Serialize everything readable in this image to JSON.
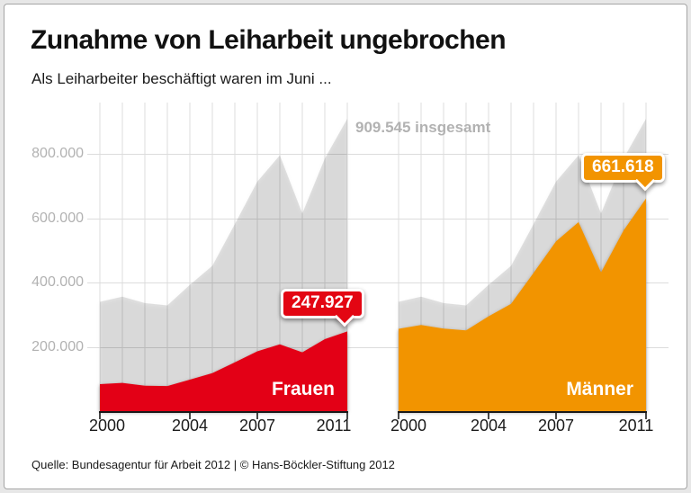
{
  "header": {
    "title": "Zunahme von Leiharbeit ungebrochen",
    "subtitle": "Als Leiharbeiter beschäftigt waren im Juni ..."
  },
  "footer": {
    "source": "Quelle: Bundesagentur für Arbeit 2012 | © Hans-Böckler-Stiftung 2012"
  },
  "colors": {
    "frauen": "#e30613",
    "maenner": "#f29400",
    "total_area": "rgba(0,0,0,0.115)",
    "grid": "#dcdcdc",
    "axis": "#1a1a1a",
    "muted_text": "#b2b2b2"
  },
  "chart_data": {
    "type": "area",
    "years": [
      2000,
      2001,
      2002,
      2003,
      2004,
      2005,
      2006,
      2007,
      2008,
      2009,
      2010,
      2011
    ],
    "ylim": [
      0,
      960000
    ],
    "grid": true,
    "y_ticks": [
      {
        "value": 200000,
        "label": "200.000"
      },
      {
        "value": 400000,
        "label": "400.000"
      },
      {
        "value": 600000,
        "label": "600.000"
      },
      {
        "value": 800000,
        "label": "800.000"
      }
    ],
    "x_ticks": {
      "years": [
        2000,
        2004,
        2007,
        2011
      ],
      "labels": [
        "2000",
        "2004",
        "2007",
        "2011"
      ]
    },
    "total_series": {
      "name": "insgesamt",
      "values": [
        340000,
        356000,
        336000,
        329000,
        393000,
        452000,
        582000,
        714000,
        796000,
        615000,
        786000,
        909545
      ],
      "final_value": 909545,
      "final_label": "909.545 insgesamt"
    },
    "panels": [
      {
        "key": "frauen",
        "label": "Frauen",
        "callout": "247.927",
        "final_value": 247927,
        "values": [
          84000,
          88000,
          79000,
          78000,
          98000,
          118000,
          152000,
          186000,
          208000,
          183000,
          224000,
          247927
        ]
      },
      {
        "key": "maenner",
        "label": "Männer",
        "callout": "661.618",
        "final_value": 661618,
        "values": [
          256000,
          268000,
          257000,
          251000,
          295000,
          334000,
          430000,
          528000,
          588000,
          432000,
          562000,
          661618
        ]
      }
    ]
  }
}
